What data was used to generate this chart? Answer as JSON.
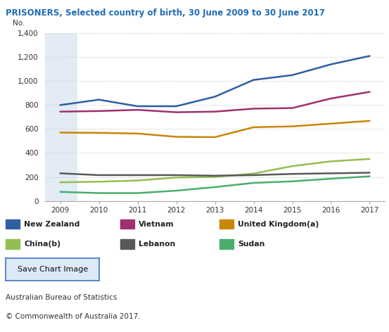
{
  "title": "PRISONERS, Selected country of birth, 30 June 2009 to 30 June 2017",
  "ylabel": "No.",
  "years": [
    2009,
    2010,
    2011,
    2012,
    2013,
    2014,
    2015,
    2016,
    2017
  ],
  "series": {
    "New Zealand": {
      "values": [
        800,
        845,
        790,
        790,
        870,
        1010,
        1050,
        1140,
        1210
      ],
      "color": "#2e5fa3",
      "linewidth": 1.8
    },
    "Vietnam": {
      "values": [
        745,
        750,
        760,
        740,
        745,
        770,
        775,
        855,
        910
      ],
      "color": "#a0306e",
      "linewidth": 1.8
    },
    "United Kingdom(a)": {
      "values": [
        570,
        568,
        562,
        535,
        532,
        615,
        622,
        645,
        668
      ],
      "color": "#c8860a",
      "linewidth": 1.8
    },
    "China(b)": {
      "values": [
        155,
        160,
        170,
        195,
        200,
        228,
        290,
        330,
        350
      ],
      "color": "#92c050",
      "linewidth": 1.8
    },
    "Lebanon": {
      "values": [
        230,
        215,
        215,
        215,
        210,
        215,
        225,
        230,
        235
      ],
      "color": "#595959",
      "linewidth": 1.8
    },
    "Sudan": {
      "values": [
        75,
        65,
        65,
        85,
        115,
        150,
        163,
        185,
        205
      ],
      "color": "#4aae6e",
      "linewidth": 1.8
    }
  },
  "ylim": [
    0,
    1400
  ],
  "yticks": [
    0,
    200,
    400,
    600,
    800,
    1000,
    1200,
    1400
  ],
  "background_color": "#ffffff",
  "grid_color": "#c8c8c8",
  "title_color": "#1f6bb5",
  "footer_color": "#333333",
  "footer_lines": [
    "Australian Bureau of Statistics",
    "© Commonwealth of Australia 2017."
  ],
  "legend_order": [
    "New Zealand",
    "Vietnam",
    "United Kingdom(a)",
    "China(b)",
    "Lebanon",
    "Sudan"
  ]
}
